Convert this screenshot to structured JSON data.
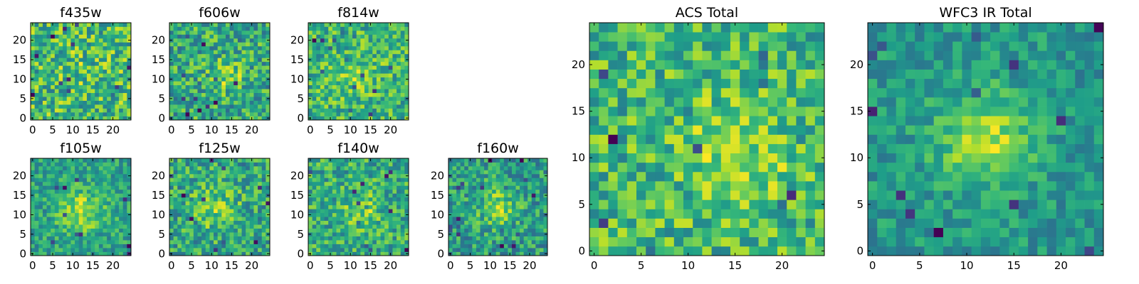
{
  "chart_data": [
    {
      "type": "heatmap",
      "title": "f435w",
      "xlim": [
        -0.5,
        24.5
      ],
      "ylim": [
        -0.5,
        24.5
      ],
      "xticks": [
        0,
        5,
        10,
        15,
        20
      ],
      "yticks": [
        0,
        5,
        10,
        15,
        20
      ],
      "grid_size": [
        25,
        25
      ],
      "colormap": "viridis",
      "pattern": "pixel-level noise with no obvious central source",
      "seed": 11,
      "noise": 0.95,
      "blob": {
        "x": 12,
        "y": 12,
        "sigma": 4,
        "amp": 0.1
      }
    },
    {
      "type": "heatmap",
      "title": "f606w",
      "xlim": [
        -0.5,
        24.5
      ],
      "ylim": [
        -0.5,
        24.5
      ],
      "xticks": [
        0,
        5,
        10,
        15,
        20
      ],
      "yticks": [
        0,
        5,
        10,
        15,
        20
      ],
      "grid_size": [
        25,
        25
      ],
      "colormap": "viridis",
      "pattern": "faint compact source near x≈14, y≈11",
      "seed": 23,
      "noise": 0.85,
      "blob": {
        "x": 14,
        "y": 11,
        "sigma": 3,
        "amp": 0.35
      }
    },
    {
      "type": "heatmap",
      "title": "f814w",
      "xlim": [
        -0.5,
        24.5
      ],
      "ylim": [
        -0.5,
        24.5
      ],
      "xticks": [
        0,
        5,
        10,
        15,
        20
      ],
      "yticks": [
        0,
        5,
        10,
        15,
        20
      ],
      "grid_size": [
        25,
        25
      ],
      "colormap": "viridis",
      "pattern": "noisy field with weak central excess",
      "seed": 37,
      "noise": 0.9,
      "blob": {
        "x": 12,
        "y": 11,
        "sigma": 4,
        "amp": 0.25
      }
    },
    {
      "type": "heatmap",
      "title": "f105w",
      "xlim": [
        -0.5,
        24.5
      ],
      "ylim": [
        -0.5,
        24.5
      ],
      "xticks": [
        0,
        5,
        10,
        15,
        20
      ],
      "yticks": [
        0,
        5,
        10,
        15,
        20
      ],
      "grid_size": [
        25,
        25
      ],
      "colormap": "viridis",
      "pattern": "extended source centred near x≈12, y≈11",
      "seed": 41,
      "noise": 0.7,
      "blob": {
        "x": 12,
        "y": 11,
        "sigma": 4,
        "amp": 0.55
      }
    },
    {
      "type": "heatmap",
      "title": "f125w",
      "xlim": [
        -0.5,
        24.5
      ],
      "ylim": [
        -0.5,
        24.5
      ],
      "xticks": [
        0,
        5,
        10,
        15,
        20
      ],
      "yticks": [
        0,
        5,
        10,
        15,
        20
      ],
      "grid_size": [
        25,
        25
      ],
      "colormap": "viridis",
      "pattern": "weak extended source near centre",
      "seed": 53,
      "noise": 0.8,
      "blob": {
        "x": 11,
        "y": 12,
        "sigma": 4,
        "amp": 0.35
      }
    },
    {
      "type": "heatmap",
      "title": "f140w",
      "xlim": [
        -0.5,
        24.5
      ],
      "ylim": [
        -0.5,
        24.5
      ],
      "xticks": [
        0,
        5,
        10,
        15,
        20
      ],
      "yticks": [
        0,
        5,
        10,
        15,
        20
      ],
      "grid_size": [
        25,
        25
      ],
      "colormap": "viridis",
      "pattern": "noisy field with faint central source",
      "seed": 67,
      "noise": 0.85,
      "blob": {
        "x": 13,
        "y": 11,
        "sigma": 3.5,
        "amp": 0.35
      }
    },
    {
      "type": "heatmap",
      "title": "f160w",
      "xlim": [
        -0.5,
        24.5
      ],
      "ylim": [
        -0.5,
        24.5
      ],
      "xticks": [
        0,
        5,
        10,
        15,
        20
      ],
      "yticks": [
        0,
        5,
        10,
        15,
        20
      ],
      "grid_size": [
        25,
        25
      ],
      "colormap": "viridis",
      "pattern": "compact source near x≈12, y≈12",
      "seed": 79,
      "noise": 0.75,
      "blob": {
        "x": 12,
        "y": 12,
        "sigma": 3.5,
        "amp": 0.45
      }
    },
    {
      "type": "heatmap",
      "title": "ACS Total",
      "xlim": [
        -0.5,
        24.5
      ],
      "ylim": [
        -0.5,
        24.5
      ],
      "xticks": [
        0,
        5,
        10,
        15,
        20
      ],
      "yticks": [
        0,
        5,
        10,
        15,
        20
      ],
      "grid_size": [
        25,
        25
      ],
      "colormap": "viridis",
      "pattern": "brighter region near x≈15, y≈11 with scattered low pixels",
      "seed": 97,
      "noise": 0.8,
      "blob": {
        "x": 15,
        "y": 11,
        "sigma": 4,
        "amp": 0.35
      }
    },
    {
      "type": "heatmap",
      "title": "WFC3 IR Total",
      "xlim": [
        -0.5,
        24.5
      ],
      "ylim": [
        -0.5,
        24.5
      ],
      "xticks": [
        0,
        5,
        10,
        15,
        20
      ],
      "yticks": [
        0,
        5,
        10,
        15,
        20
      ],
      "grid_size": [
        25,
        25
      ],
      "colormap": "viridis",
      "pattern": "bright extended source near x≈12, y≈12",
      "seed": 131,
      "noise": 0.6,
      "blob": {
        "x": 12,
        "y": 12,
        "sigma": 3.5,
        "amp": 0.7
      }
    }
  ]
}
